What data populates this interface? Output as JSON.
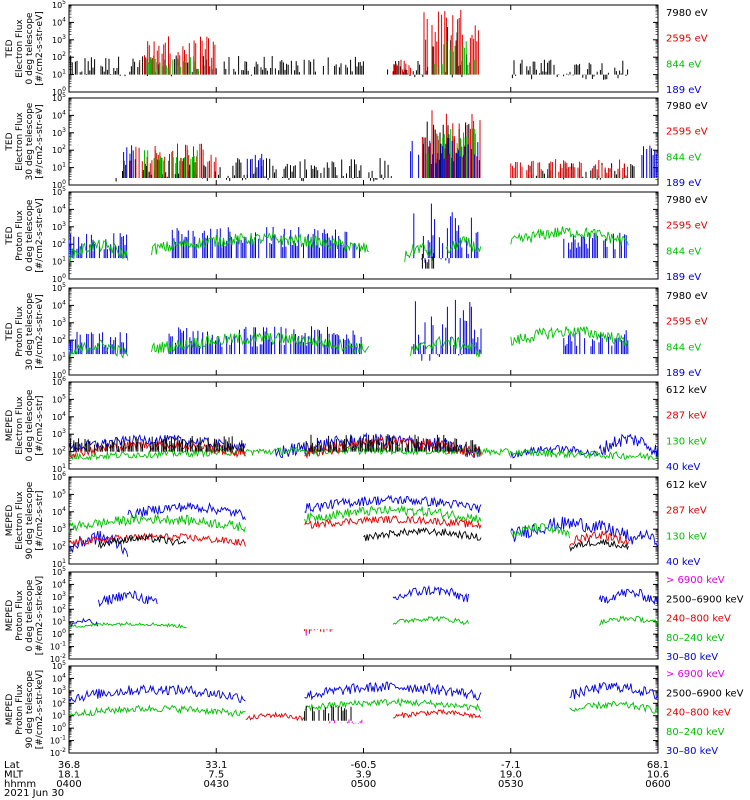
{
  "chart_data": [
    {
      "type": "line",
      "ylabel": [
        "TED",
        "Electron Flux",
        "0 deg telescope",
        "[#/cm2-s-str-eV]"
      ],
      "ylim_exp": [
        0,
        5
      ],
      "legend": [
        {
          "label": "7980 eV",
          "color": "#000000"
        },
        {
          "label": "2595 eV",
          "color": "#e00000"
        },
        {
          "label": "844 eV",
          "color": "#00c000"
        },
        {
          "label": "189 eV",
          "color": "#0000e0"
        }
      ],
      "series": [
        {
          "color": "#000000",
          "style": "spikes",
          "base": 1.0,
          "segments": [
            [
              0.0,
              0.5,
              1.5,
              0.6
            ],
            [
              0.53,
              0.61,
              1.3,
              0.5
            ],
            [
              0.61,
              0.68,
              2.4,
              1.6
            ],
            [
              0.75,
              0.95,
              1.3,
              0.6
            ]
          ]
        },
        {
          "color": "#e00000",
          "style": "spikes",
          "base": 1.0,
          "segments": [
            [
              0.12,
              0.25,
              2.5,
              0.7
            ],
            [
              0.55,
              0.58,
              1.4,
              0.5
            ],
            [
              0.6,
              0.7,
              3.6,
              1.2
            ]
          ]
        },
        {
          "color": "#00c000",
          "style": "spikes",
          "base": 1.0,
          "segments": [
            [
              0.13,
              0.22,
              1.7,
              0.4
            ],
            [
              0.62,
              0.69,
              2.3,
              0.8
            ]
          ]
        }
      ]
    },
    {
      "type": "line",
      "ylabel": [
        "TED",
        "Electron Flux",
        "30 deg telescope",
        "[#/cm2-s-str-eV]"
      ],
      "ylim_exp": [
        0,
        5
      ],
      "legend": [
        {
          "label": "7980 eV",
          "color": "#000000"
        },
        {
          "label": "2595 eV",
          "color": "#e00000"
        },
        {
          "label": "844 eV",
          "color": "#00c000"
        },
        {
          "label": "189 eV",
          "color": "#0000e0"
        }
      ],
      "series": [
        {
          "color": "#000000",
          "style": "spikes",
          "base": 0.4,
          "segments": [
            [
              0.08,
              0.55,
              0.9,
              0.7
            ],
            [
              0.6,
              0.68,
              2.4,
              1.4
            ],
            [
              0.78,
              0.97,
              0.8,
              0.5
            ]
          ]
        },
        {
          "color": "#e00000",
          "style": "spikes",
          "base": 0.4,
          "segments": [
            [
              0.1,
              0.25,
              1.8,
              0.6
            ],
            [
              0.6,
              0.7,
              3.0,
              1.4
            ],
            [
              0.75,
              0.95,
              1.1,
              0.4
            ]
          ]
        },
        {
          "color": "#00c000",
          "style": "spikes",
          "base": 0.4,
          "segments": [
            [
              0.12,
              0.22,
              1.7,
              0.4
            ],
            [
              0.61,
              0.69,
              2.5,
              0.8
            ]
          ]
        },
        {
          "color": "#0000e0",
          "style": "spikes",
          "base": 0.4,
          "segments": [
            [
              0.09,
              0.11,
              2.0,
              0.3
            ],
            [
              0.3,
              0.33,
              1.6,
              0.2
            ],
            [
              0.58,
              0.7,
              2.0,
              0.8
            ],
            [
              0.97,
              1.0,
              2.0,
              0.3
            ]
          ]
        }
      ]
    },
    {
      "type": "line",
      "ylabel": [
        "TED",
        "Proton Flux",
        "0 deg telescope",
        "[#/cm2-s-str-eV]"
      ],
      "ylim_exp": [
        0,
        5
      ],
      "legend": [
        {
          "label": "7980 eV",
          "color": "#000000"
        },
        {
          "label": "2595 eV",
          "color": "#e00000"
        },
        {
          "label": "844 eV",
          "color": "#00c000"
        },
        {
          "label": "189 eV",
          "color": "#0000e0"
        }
      ],
      "series": [
        {
          "color": "#0000e0",
          "style": "spikes",
          "base": 1.2,
          "segments": [
            [
              0.0,
              0.1,
              2.2,
              0.5
            ],
            [
              0.17,
              0.5,
              2.4,
              0.6
            ],
            [
              0.58,
              0.7,
              2.6,
              1.8
            ],
            [
              0.84,
              0.95,
              2.2,
              0.5
            ]
          ]
        },
        {
          "color": "#00c000",
          "style": "line",
          "segments": [
            [
              0.0,
              0.1,
              1.8,
              0.5
            ],
            [
              0.14,
              0.51,
              2.2,
              0.5
            ],
            [
              0.57,
              0.62,
              1.7,
              0.5
            ],
            [
              0.64,
              0.7,
              2.0,
              0.5
            ],
            [
              0.75,
              0.95,
              2.6,
              0.5
            ]
          ]
        },
        {
          "color": "#000000",
          "style": "spikes",
          "base": 0.6,
          "segments": [
            [
              0.6,
              0.62,
              1.2,
              0.3
            ]
          ]
        }
      ]
    },
    {
      "type": "line",
      "ylabel": [
        "TED",
        "Proton Flux",
        "30 deg telescope",
        "[#/cm2-s-str-eV]"
      ],
      "ylim_exp": [
        0,
        5
      ],
      "legend": [
        {
          "label": "7980 eV",
          "color": "#000000"
        },
        {
          "label": "2595 eV",
          "color": "#e00000"
        },
        {
          "label": "844 eV",
          "color": "#00c000"
        },
        {
          "label": "189 eV",
          "color": "#0000e0"
        }
      ],
      "series": [
        {
          "color": "#0000e0",
          "style": "spikes",
          "base": 1.2,
          "segments": [
            [
              0.0,
              0.1,
              2.0,
              0.5
            ],
            [
              0.17,
              0.5,
              2.2,
              0.6
            ],
            [
              0.58,
              0.7,
              2.6,
              1.8
            ],
            [
              0.84,
              0.95,
              2.1,
              0.5
            ]
          ]
        },
        {
          "color": "#00c000",
          "style": "line",
          "segments": [
            [
              0.0,
              0.1,
              1.6,
              0.5
            ],
            [
              0.14,
              0.51,
              2.0,
              0.5
            ],
            [
              0.58,
              0.7,
              1.8,
              0.5
            ],
            [
              0.75,
              0.95,
              2.4,
              0.5
            ]
          ]
        }
      ]
    },
    {
      "type": "line",
      "ylabel": [
        "MEPED",
        "Electron Flux",
        "0 deg telescope",
        "[#/cm2-s-str]"
      ],
      "ylim_exp": [
        1,
        6
      ],
      "legend": [
        {
          "label": "612 keV",
          "color": "#000000"
        },
        {
          "label": "287 keV",
          "color": "#e00000"
        },
        {
          "label": "130 keV",
          "color": "#00c000"
        },
        {
          "label": "40 keV",
          "color": "#0000e0"
        }
      ],
      "series": [
        {
          "color": "#0000e0",
          "style": "line",
          "segments": [
            [
              0.0,
              0.3,
              2.6,
              0.4
            ],
            [
              0.35,
              0.7,
              2.5,
              0.6
            ],
            [
              0.75,
              0.9,
              2.1,
              0.3
            ],
            [
              0.9,
              1.0,
              2.6,
              0.6
            ]
          ]
        },
        {
          "color": "#00c000",
          "style": "line",
          "segments": [
            [
              0.0,
              1.0,
              2.0,
              0.3
            ]
          ]
        },
        {
          "color": "#e00000",
          "style": "line",
          "segments": [
            [
              0.0,
              0.3,
              2.3,
              0.4
            ],
            [
              0.4,
              0.7,
              2.4,
              0.5
            ]
          ]
        },
        {
          "color": "#000000",
          "style": "spikes",
          "base": 2.0,
          "segments": [
            [
              0.0,
              0.3,
              2.6,
              0.3
            ],
            [
              0.4,
              0.7,
              2.6,
              0.4
            ]
          ]
        }
      ]
    },
    {
      "type": "line",
      "ylabel": [
        "MEPED",
        "Electron Flux",
        "90 deg telescope",
        "[#/cm2-s-str]"
      ],
      "ylim_exp": [
        1,
        6
      ],
      "legend": [
        {
          "label": "612 keV",
          "color": "#000000"
        },
        {
          "label": "287 keV",
          "color": "#e00000"
        },
        {
          "label": "130 keV",
          "color": "#00c000"
        },
        {
          "label": "40 keV",
          "color": "#0000e0"
        }
      ],
      "series": [
        {
          "color": "#0000e0",
          "style": "line",
          "segments": [
            [
              0.0,
              0.1,
              2.4,
              0.6
            ],
            [
              0.1,
              0.3,
              4.2,
              0.4
            ],
            [
              0.4,
              0.7,
              4.6,
              0.4
            ],
            [
              0.75,
              0.95,
              3.2,
              0.6
            ],
            [
              0.95,
              1.0,
              2.6,
              0.4
            ]
          ]
        },
        {
          "color": "#00c000",
          "style": "line",
          "segments": [
            [
              0.0,
              0.3,
              3.5,
              0.4
            ],
            [
              0.4,
              0.7,
              4.0,
              0.4
            ],
            [
              0.75,
              0.85,
              3.0,
              0.4
            ]
          ]
        },
        {
          "color": "#e00000",
          "style": "line",
          "segments": [
            [
              0.0,
              0.3,
              2.5,
              0.3
            ],
            [
              0.4,
              0.7,
              3.5,
              0.3
            ],
            [
              0.85,
              0.95,
              2.6,
              0.4
            ]
          ]
        },
        {
          "color": "#000000",
          "style": "line",
          "segments": [
            [
              0.05,
              0.2,
              2.4,
              0.3
            ],
            [
              0.5,
              0.7,
              2.8,
              0.3
            ],
            [
              0.85,
              0.95,
              2.2,
              0.3
            ]
          ]
        }
      ]
    },
    {
      "type": "line",
      "ylabel": [
        "MEPED",
        "Proton Flux",
        "0 deg telescope",
        "[#/cm2-s-str-keV]"
      ],
      "ylim_exp": [
        -2,
        5
      ],
      "legend": [
        {
          "label": "> 6900 keV",
          "color": "#e000e0"
        },
        {
          "label": "2500–6900 keV",
          "color": "#000000"
        },
        {
          "label": "240–800 keV",
          "color": "#e00000"
        },
        {
          "label": "80–240 keV",
          "color": "#00c000"
        },
        {
          "label": "30–80 keV",
          "color": "#0000e0"
        }
      ],
      "series": [
        {
          "color": "#0000e0",
          "style": "line",
          "segments": [
            [
              0.0,
              0.05,
              1.0,
              0.3
            ],
            [
              0.05,
              0.15,
              3.0,
              0.6
            ],
            [
              0.55,
              0.68,
              3.4,
              0.6
            ],
            [
              0.9,
              1.0,
              3.2,
              0.6
            ]
          ]
        },
        {
          "color": "#00c000",
          "style": "line",
          "segments": [
            [
              0.0,
              0.2,
              0.8,
              0.2
            ],
            [
              0.55,
              0.68,
              1.2,
              0.3
            ],
            [
              0.9,
              1.0,
              1.2,
              0.3
            ]
          ]
        },
        {
          "color": "#e00000",
          "style": "spikes",
          "base": 0.4,
          "segments": [
            [
              0.4,
              0.45,
              0.2,
              0.2
            ]
          ]
        },
        {
          "color": "#e000e0",
          "style": "spikes",
          "base": 0.2,
          "segments": [
            [
              0.4,
              0.42,
              0.0,
              0.2
            ]
          ]
        }
      ]
    },
    {
      "type": "line",
      "ylabel": [
        "MEPED",
        "Proton Flux",
        "90 deg telescope",
        "[#/cm2-s-str-keV]"
      ],
      "ylim_exp": [
        -2,
        5
      ],
      "legend": [
        {
          "label": "> 6900 keV",
          "color": "#e000e0"
        },
        {
          "label": "2500–6900 keV",
          "color": "#000000"
        },
        {
          "label": "240–800 keV",
          "color": "#e00000"
        },
        {
          "label": "80–240 keV",
          "color": "#00c000"
        },
        {
          "label": "30–80 keV",
          "color": "#0000e0"
        }
      ],
      "series": [
        {
          "color": "#0000e0",
          "style": "line",
          "segments": [
            [
              0.0,
              0.3,
              3.0,
              0.6
            ],
            [
              0.4,
              0.7,
              3.2,
              0.6
            ],
            [
              0.85,
              1.0,
              3.2,
              0.6
            ]
          ]
        },
        {
          "color": "#00c000",
          "style": "line",
          "segments": [
            [
              0.0,
              0.3,
              1.5,
              0.4
            ],
            [
              0.4,
              0.7,
              2.0,
              0.4
            ],
            [
              0.85,
              1.0,
              1.8,
              0.4
            ]
          ]
        },
        {
          "color": "#e00000",
          "style": "line",
          "segments": [
            [
              0.3,
              0.4,
              1.0,
              0.3
            ],
            [
              0.55,
              0.7,
              1.2,
              0.3
            ]
          ]
        },
        {
          "color": "#000000",
          "style": "spikes",
          "base": 0.6,
          "segments": [
            [
              0.4,
              0.48,
              1.5,
              0.3
            ]
          ]
        },
        {
          "color": "#e000e0",
          "style": "spikes",
          "base": 0.4,
          "segments": [
            [
              0.44,
              0.5,
              0.5,
              0.2
            ]
          ]
        }
      ]
    }
  ],
  "axis": {
    "labels": [
      "Lat",
      "MLT",
      "hhmm",
      "2021 Jun 30"
    ],
    "ticks": [
      {
        "Lat": "36.8",
        "MLT": "18.1",
        "hhmm": "0400"
      },
      {
        "Lat": "33.1",
        "MLT": "7.5",
        "hhmm": "0430"
      },
      {
        "Lat": "-60.5",
        "MLT": "3.9",
        "hhmm": "0500"
      },
      {
        "Lat": "-7.1",
        "MLT": "19.0",
        "hhmm": "0530"
      },
      {
        "Lat": "68.1",
        "MLT": "10.6",
        "hhmm": "0600"
      }
    ]
  }
}
